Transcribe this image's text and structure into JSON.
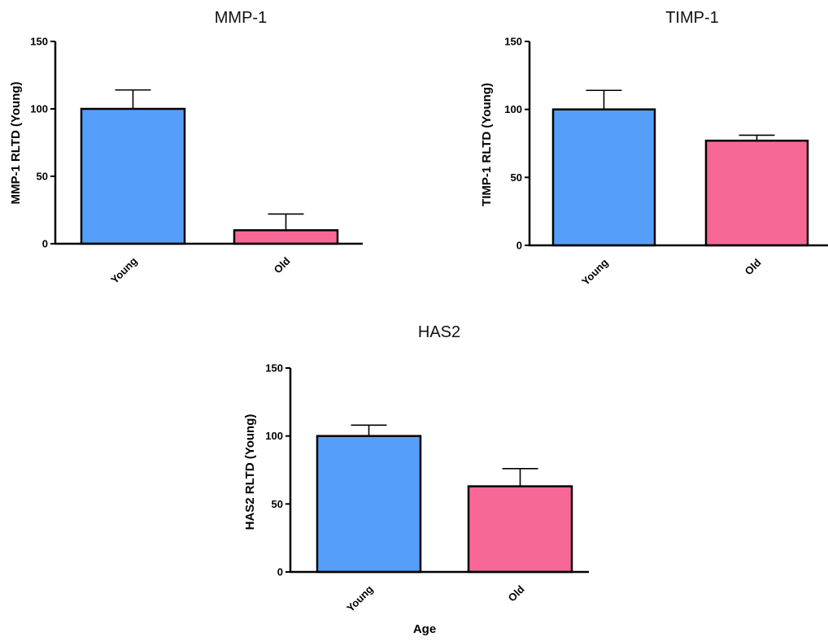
{
  "chart_data": [
    {
      "type": "bar",
      "title": "MMP-1",
      "xlabel": "",
      "ylabel": "MMP-1 RLTD (Young)",
      "ylim": [
        0,
        150
      ],
      "yticks": [
        0,
        50,
        100,
        150
      ],
      "categories": [
        "Young",
        "Old"
      ],
      "values": [
        100,
        10
      ],
      "errors": [
        14,
        12
      ],
      "colors": [
        "#559ffb",
        "#f86896"
      ],
      "grid": false
    },
    {
      "type": "bar",
      "title": "TIMP-1",
      "xlabel": "",
      "ylabel": "TIMP-1 RLTD (Young)",
      "ylim": [
        0,
        150
      ],
      "yticks": [
        0,
        50,
        100,
        150
      ],
      "categories": [
        "Young",
        "Old"
      ],
      "values": [
        100,
        77
      ],
      "errors": [
        14,
        4
      ],
      "colors": [
        "#559ffb",
        "#f86896"
      ],
      "grid": false
    },
    {
      "type": "bar",
      "title": "HAS2",
      "xlabel": "Age",
      "ylabel": "HAS2 RLTD (Young)",
      "ylim": [
        0,
        150
      ],
      "yticks": [
        0,
        50,
        100,
        150
      ],
      "categories": [
        "Young",
        "Old"
      ],
      "values": [
        100,
        63
      ],
      "errors": [
        8,
        13
      ],
      "colors": [
        "#559ffb",
        "#f86896"
      ],
      "grid": false
    }
  ]
}
